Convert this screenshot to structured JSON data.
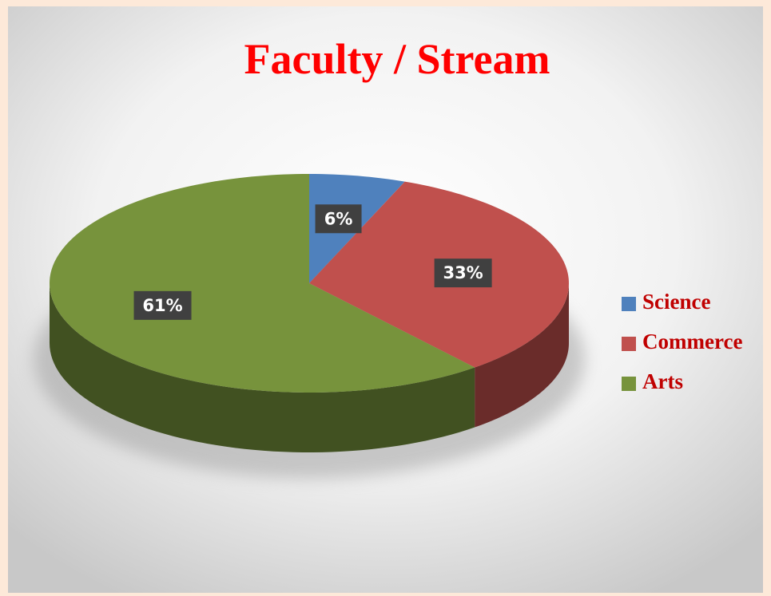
{
  "chart_data": {
    "type": "pie3d",
    "title": "Faculty / Stream",
    "categories": [
      "Science",
      "Commerce",
      "Arts"
    ],
    "values": [
      6,
      33,
      61
    ],
    "value_labels": [
      "6%",
      "33%",
      "61%"
    ],
    "colors": [
      "#4f81bd",
      "#c0504d",
      "#77933c"
    ],
    "legend": "right"
  }
}
